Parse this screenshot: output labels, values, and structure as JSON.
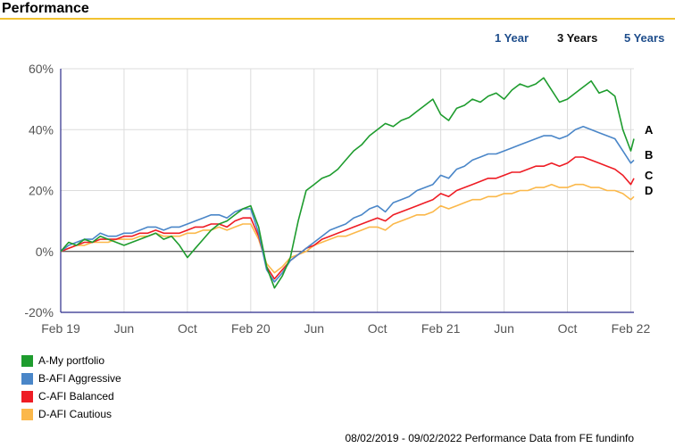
{
  "header": {
    "title": "Performance"
  },
  "periods": [
    {
      "label": "1 Year",
      "active": false
    },
    {
      "label": "3 Years",
      "active": true
    },
    {
      "label": "5 Years",
      "active": false
    }
  ],
  "colors": {
    "A": "#1e9c2e",
    "B": "#4a86c8",
    "C": "#ee1c24",
    "D": "#fbb84a",
    "header_rule": "#f2c230",
    "link": "#1f4e8c"
  },
  "legend": [
    {
      "label": "A-My portfolio",
      "color": "#1e9c2e"
    },
    {
      "label": "B-AFI Aggressive",
      "color": "#4a86c8"
    },
    {
      "label": "C-AFI Balanced",
      "color": "#ee1c24"
    },
    {
      "label": "D-AFI Cautious",
      "color": "#fbb84a"
    }
  ],
  "footer": {
    "text": "08/02/2019 - 09/02/2022 Performance Data from FE fundinfo"
  },
  "chart_data": {
    "type": "line",
    "x_unit": "months since Feb 19",
    "x_ticks": [
      {
        "x": 0,
        "label": "Feb 19"
      },
      {
        "x": 4,
        "label": "Jun"
      },
      {
        "x": 8,
        "label": "Oct"
      },
      {
        "x": 12,
        "label": "Feb 20"
      },
      {
        "x": 16,
        "label": "Jun"
      },
      {
        "x": 20,
        "label": "Oct"
      },
      {
        "x": 24,
        "label": "Feb 21"
      },
      {
        "x": 28,
        "label": "Jun"
      },
      {
        "x": 32,
        "label": "Oct"
      },
      {
        "x": 36,
        "label": "Feb 22"
      }
    ],
    "y_ticks": [
      {
        "y": 60,
        "label": "60%"
      },
      {
        "y": 40,
        "label": "40%"
      },
      {
        "y": 20,
        "label": "20%"
      },
      {
        "y": 0,
        "label": "0%"
      },
      {
        "y": -20,
        "label": "-20%"
      }
    ],
    "xlim": [
      0,
      36.2
    ],
    "ylim": [
      -20,
      60
    ],
    "grid": true,
    "series": [
      {
        "name": "A-My portfolio",
        "end_label": "A",
        "color": "#1e9c2e",
        "x": [
          0,
          0.5,
          1,
          1.5,
          2,
          2.5,
          3,
          3.5,
          4,
          4.5,
          5,
          5.5,
          6,
          6.5,
          7,
          7.5,
          8,
          8.5,
          9,
          9.5,
          10,
          10.5,
          11,
          11.5,
          12,
          12.5,
          13,
          13.5,
          14,
          14.5,
          15,
          15.5,
          16,
          16.5,
          17,
          17.5,
          18,
          18.5,
          19,
          19.5,
          20,
          20.5,
          21,
          21.5,
          22,
          22.5,
          23,
          23.5,
          24,
          24.5,
          25,
          25.5,
          26,
          26.5,
          27,
          27.5,
          28,
          28.5,
          29,
          29.5,
          30,
          30.5,
          31,
          31.5,
          32,
          32.5,
          33,
          33.5,
          34,
          34.5,
          35,
          35.5,
          36,
          36.2
        ],
        "y": [
          0,
          3,
          2,
          4,
          3,
          5,
          4,
          3,
          2,
          3,
          4,
          5,
          6,
          4,
          5,
          2,
          -2,
          1,
          4,
          7,
          9,
          10,
          12,
          14,
          15,
          8,
          -5,
          -12,
          -8,
          -2,
          10,
          20,
          22,
          24,
          25,
          27,
          30,
          33,
          35,
          38,
          40,
          42,
          41,
          43,
          44,
          46,
          48,
          50,
          45,
          43,
          47,
          48,
          50,
          49,
          51,
          52,
          50,
          53,
          55,
          54,
          55,
          57,
          53,
          49,
          50,
          52,
          54,
          56,
          52,
          53,
          51,
          40,
          33,
          37
        ]
      },
      {
        "name": "B-AFI Aggressive",
        "end_label": "B",
        "color": "#4a86c8",
        "x": [
          0,
          0.5,
          1,
          1.5,
          2,
          2.5,
          3,
          3.5,
          4,
          4.5,
          5,
          5.5,
          6,
          6.5,
          7,
          7.5,
          8,
          8.5,
          9,
          9.5,
          10,
          10.5,
          11,
          11.5,
          12,
          12.5,
          13,
          13.5,
          14,
          14.5,
          15,
          15.5,
          16,
          16.5,
          17,
          17.5,
          18,
          18.5,
          19,
          19.5,
          20,
          20.5,
          21,
          21.5,
          22,
          22.5,
          23,
          23.5,
          24,
          24.5,
          25,
          25.5,
          26,
          26.5,
          27,
          27.5,
          28,
          28.5,
          29,
          29.5,
          30,
          30.5,
          31,
          31.5,
          32,
          32.5,
          33,
          33.5,
          34,
          34.5,
          35,
          35.5,
          36,
          36.2
        ],
        "y": [
          0,
          2,
          3,
          4,
          4,
          6,
          5,
          5,
          6,
          6,
          7,
          8,
          8,
          7,
          8,
          8,
          9,
          10,
          11,
          12,
          12,
          11,
          13,
          14,
          14,
          6,
          -6,
          -10,
          -7,
          -3,
          -1,
          1,
          3,
          5,
          7,
          8,
          9,
          11,
          12,
          14,
          15,
          13,
          16,
          17,
          18,
          20,
          21,
          22,
          25,
          24,
          27,
          28,
          30,
          31,
          32,
          32,
          33,
          34,
          35,
          36,
          37,
          38,
          38,
          37,
          38,
          40,
          41,
          40,
          39,
          38,
          37,
          33,
          29,
          30
        ]
      },
      {
        "name": "C-AFI Balanced",
        "end_label": "C",
        "color": "#ee1c24",
        "x": [
          0,
          0.5,
          1,
          1.5,
          2,
          2.5,
          3,
          3.5,
          4,
          4.5,
          5,
          5.5,
          6,
          6.5,
          7,
          7.5,
          8,
          8.5,
          9,
          9.5,
          10,
          10.5,
          11,
          11.5,
          12,
          12.5,
          13,
          13.5,
          14,
          14.5,
          15,
          15.5,
          16,
          16.5,
          17,
          17.5,
          18,
          18.5,
          19,
          19.5,
          20,
          20.5,
          21,
          21.5,
          22,
          22.5,
          23,
          23.5,
          24,
          24.5,
          25,
          25.5,
          26,
          26.5,
          27,
          27.5,
          28,
          28.5,
          29,
          29.5,
          30,
          30.5,
          31,
          31.5,
          32,
          32.5,
          33,
          33.5,
          34,
          34.5,
          35,
          35.5,
          36,
          36.2
        ],
        "y": [
          0,
          1,
          2,
          3,
          3,
          4,
          4,
          4,
          5,
          5,
          6,
          6,
          7,
          6,
          6,
          6,
          7,
          8,
          8,
          9,
          9,
          8,
          10,
          11,
          11,
          5,
          -5,
          -9,
          -6,
          -3,
          -1,
          1,
          2,
          4,
          5,
          6,
          7,
          8,
          9,
          10,
          11,
          10,
          12,
          13,
          14,
          15,
          16,
          17,
          19,
          18,
          20,
          21,
          22,
          23,
          24,
          24,
          25,
          26,
          26,
          27,
          28,
          28,
          29,
          28,
          29,
          31,
          31,
          30,
          29,
          28,
          27,
          25,
          22,
          24
        ]
      },
      {
        "name": "D-AFI Cautious",
        "end_label": "D",
        "color": "#fbb84a",
        "x": [
          0,
          0.5,
          1,
          1.5,
          2,
          2.5,
          3,
          3.5,
          4,
          4.5,
          5,
          5.5,
          6,
          6.5,
          7,
          7.5,
          8,
          8.5,
          9,
          9.5,
          10,
          10.5,
          11,
          11.5,
          12,
          12.5,
          13,
          13.5,
          14,
          14.5,
          15,
          15.5,
          16,
          16.5,
          17,
          17.5,
          18,
          18.5,
          19,
          19.5,
          20,
          20.5,
          21,
          21.5,
          22,
          22.5,
          23,
          23.5,
          24,
          24.5,
          25,
          25.5,
          26,
          26.5,
          27,
          27.5,
          28,
          28.5,
          29,
          29.5,
          30,
          30.5,
          31,
          31.5,
          32,
          32.5,
          33,
          33.5,
          34,
          34.5,
          35,
          35.5,
          36,
          36.2
        ],
        "y": [
          0,
          1,
          2,
          2,
          3,
          3,
          3,
          4,
          4,
          4,
          5,
          5,
          6,
          5,
          5,
          5,
          6,
          6,
          7,
          7,
          8,
          7,
          8,
          9,
          9,
          4,
          -4,
          -7,
          -5,
          -2,
          -1,
          0,
          2,
          3,
          4,
          5,
          5,
          6,
          7,
          8,
          8,
          7,
          9,
          10,
          11,
          12,
          12,
          13,
          15,
          14,
          15,
          16,
          17,
          17,
          18,
          18,
          19,
          19,
          20,
          20,
          21,
          21,
          22,
          21,
          21,
          22,
          22,
          21,
          21,
          20,
          20,
          19,
          17,
          18
        ]
      }
    ]
  }
}
